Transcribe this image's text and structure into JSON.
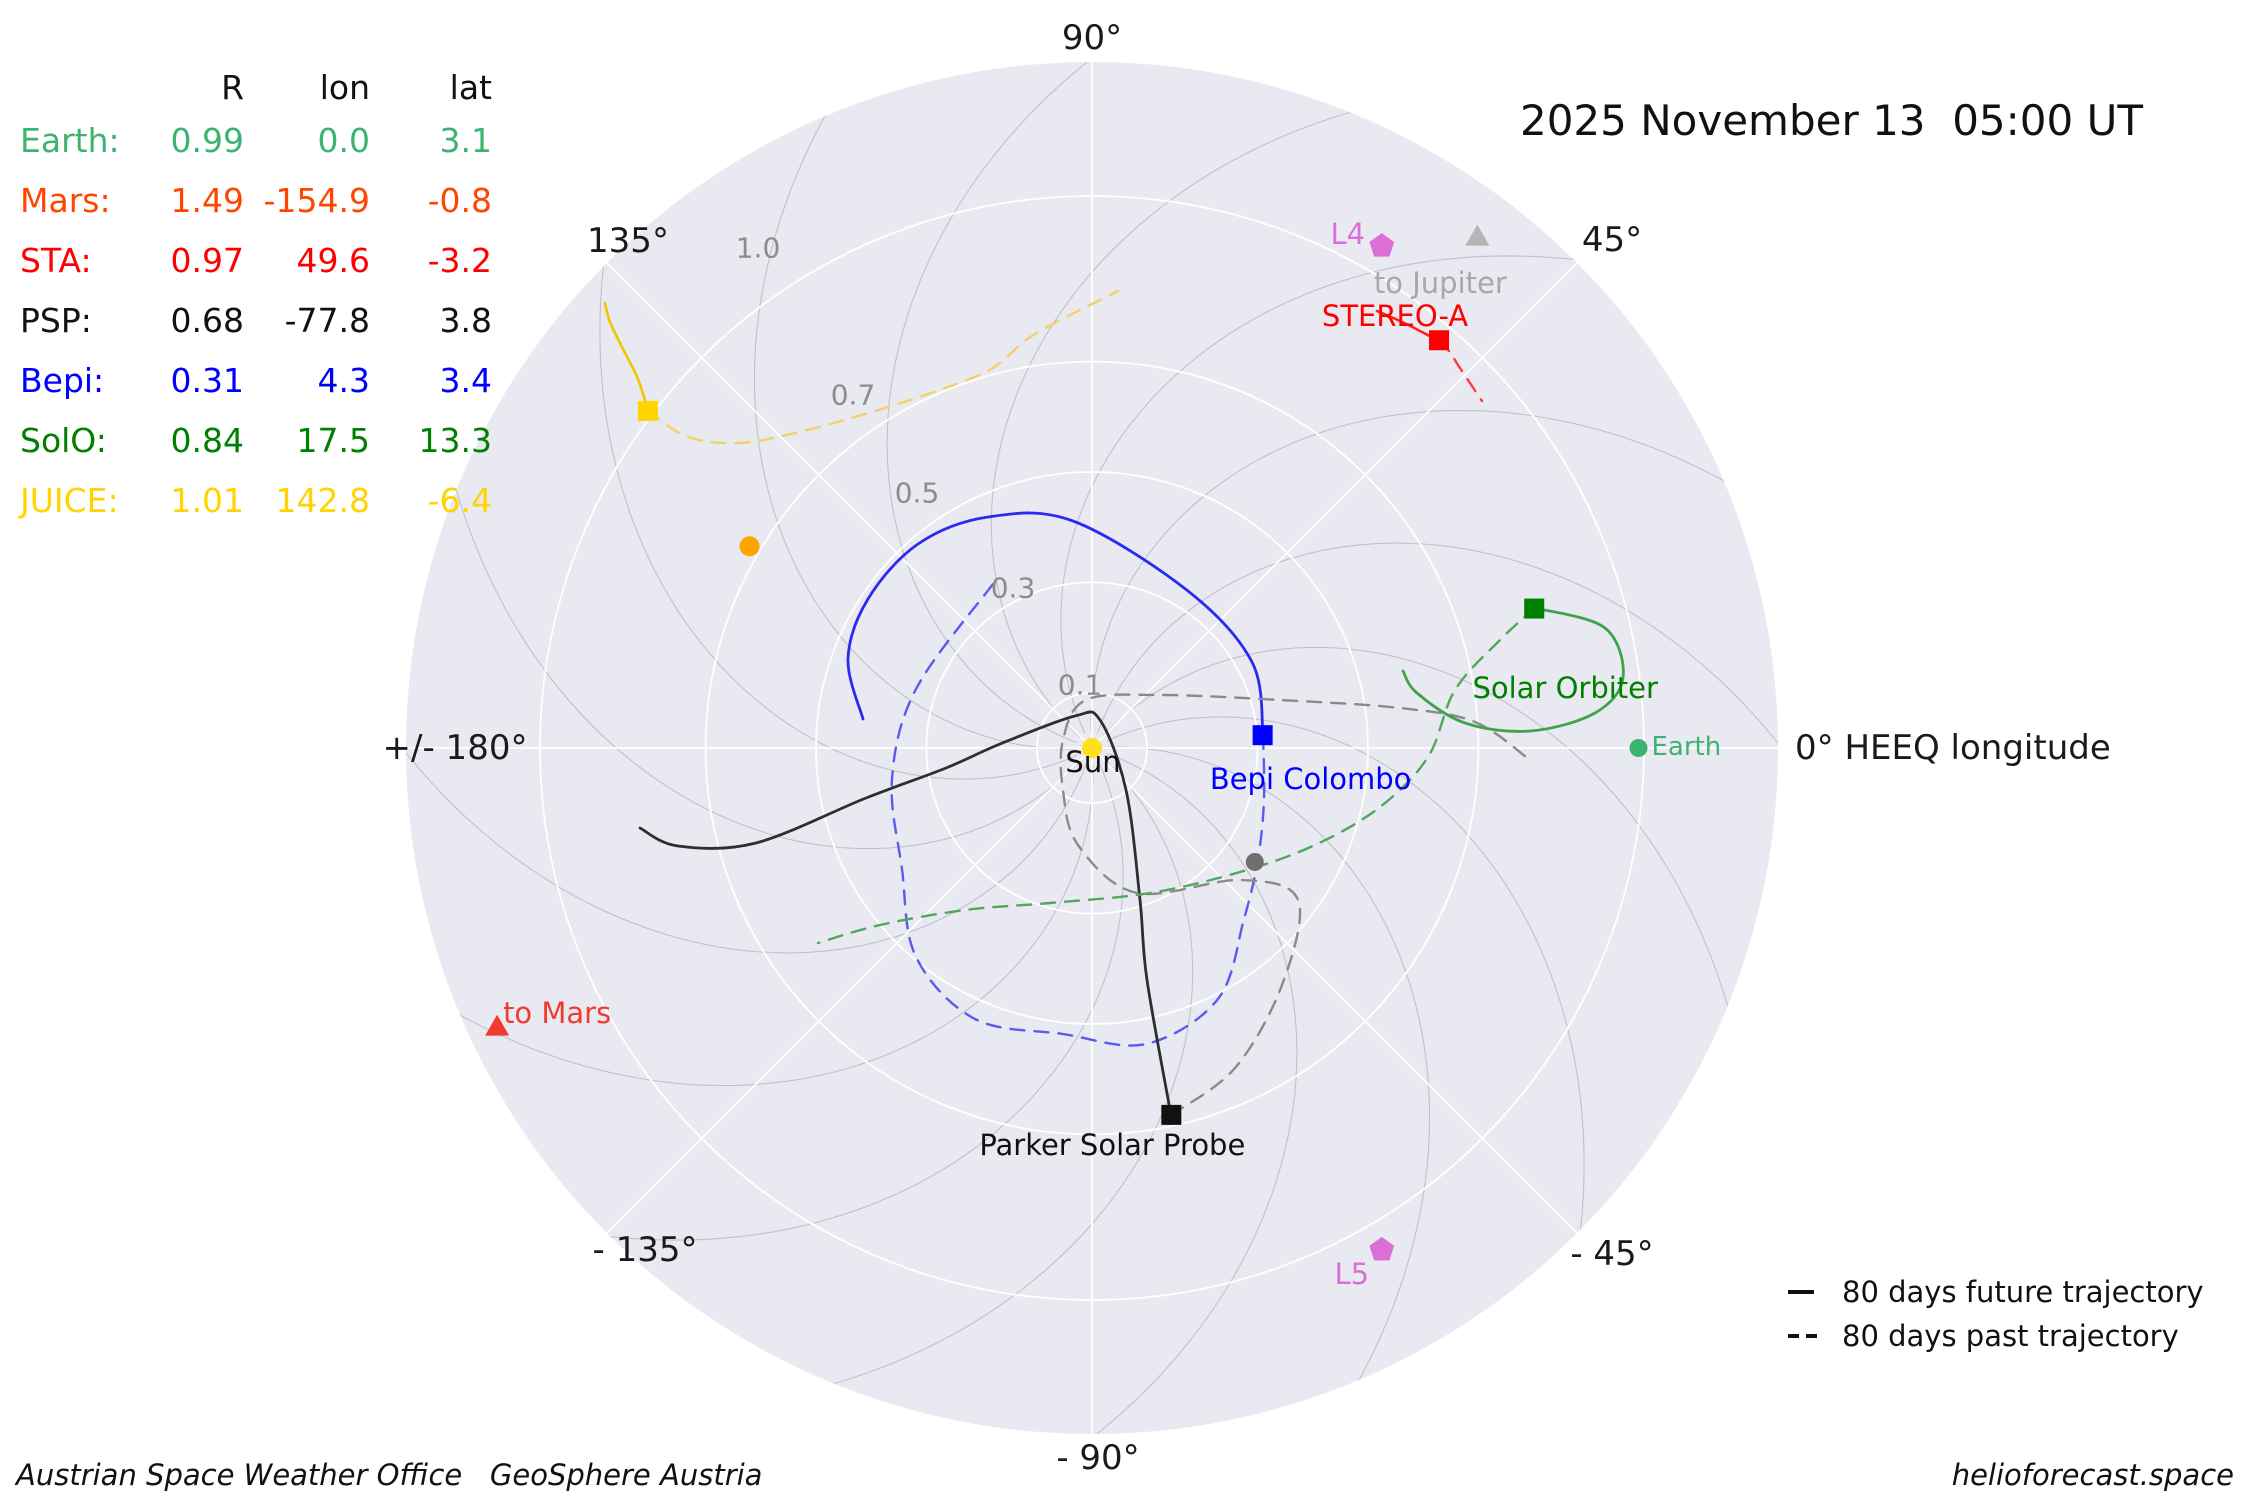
{
  "title": "2025 November 13  05:00 UT",
  "legend": {
    "future_label": "80 days future trajectory",
    "past_label": "80 days past trajectory"
  },
  "footer": {
    "left": "Austrian Space Weather Office   GeoSphere Austria",
    "right": "helioforecast.space"
  },
  "table": {
    "headers": [
      "R",
      "lon",
      "lat"
    ],
    "rows": [
      {
        "name": "Earth:",
        "r": "0.99",
        "lon": "0.0",
        "lat": "3.1",
        "color": "#3cb371"
      },
      {
        "name": "Mars:",
        "r": "1.49",
        "lon": "-154.9",
        "lat": "-0.8",
        "color": "#ff4500"
      },
      {
        "name": "STA:",
        "r": "0.97",
        "lon": "49.6",
        "lat": "-3.2",
        "color": "#ff0000"
      },
      {
        "name": "PSP:",
        "r": "0.68",
        "lon": "-77.8",
        "lat": "3.8",
        "color": "#111111"
      },
      {
        "name": "Bepi:",
        "r": "0.31",
        "lon": "4.3",
        "lat": "3.4",
        "color": "#0000ff"
      },
      {
        "name": "SolO:",
        "r": "0.84",
        "lon": "17.5",
        "lat": "13.3",
        "color": "#008000"
      },
      {
        "name": "JUICE:",
        "r": "1.01",
        "lon": "142.8",
        "lat": "-6.4",
        "color": "#ffd400"
      }
    ]
  },
  "chart_data": {
    "type": "scatter",
    "projection": "polar",
    "title": "2025 November 13  05:00 UT",
    "angular_unit": "HEEQ longitude (deg), Earth fixed at 0",
    "radial_unit": "AU",
    "radial_max": 1.25,
    "grid": true,
    "angle_tick_labels": [
      "90°",
      "45°",
      "0° HEEQ longitude",
      "- 45°",
      "- 90°",
      "- 135°",
      "+/- 180°",
      "135°"
    ],
    "radial_tick_labels": [
      "0.1",
      "0.3",
      "0.5",
      "0.7",
      "1.0"
    ],
    "legend_entries": [
      "80 days future trajectory",
      "80 days past trajectory"
    ],
    "bodies": [
      {
        "name": "sun",
        "label": "Sun",
        "label_color": "#111111",
        "shape": "circle",
        "color": "#ffe01a",
        "r": 0.0,
        "lon": 0.0,
        "lat": null
      },
      {
        "name": "earth",
        "label": "Earth",
        "label_color": "#3cb371",
        "shape": "circle",
        "color": "#3cb371",
        "r": 0.99,
        "lon": 0.0,
        "lat": 3.1
      },
      {
        "name": "mercury",
        "label": "",
        "label_color": "#6f6f6f",
        "shape": "circle",
        "color": "#6f6f6f",
        "r": 0.36,
        "lon": -35.0,
        "lat": null
      },
      {
        "name": "venus",
        "label": "",
        "label_color": "#ffa500",
        "shape": "circle",
        "color": "#ffa500",
        "r": 0.72,
        "lon": 149.5,
        "lat": null
      },
      {
        "name": "stereo-a",
        "label": "STEREO-A",
        "label_color": "#ff0000",
        "shape": "square",
        "color": "#ff0000",
        "r": 0.97,
        "lon": 49.6,
        "lat": -3.2
      },
      {
        "name": "psp",
        "label": "Parker Solar Probe",
        "label_color": "#111111",
        "shape": "square",
        "color": "#111111",
        "r": 0.68,
        "lon": -77.8,
        "lat": 3.8
      },
      {
        "name": "bepi",
        "label": "Bepi Colombo",
        "label_color": "#0000ff",
        "shape": "square",
        "color": "#0000ff",
        "r": 0.31,
        "lon": 4.3,
        "lat": 3.4
      },
      {
        "name": "solo",
        "label": "Solar Orbiter",
        "label_color": "#008000",
        "shape": "square",
        "color": "#008000",
        "r": 0.84,
        "lon": 17.5,
        "lat": 13.3
      },
      {
        "name": "juice",
        "label": "",
        "label_color": "#ffd400",
        "shape": "square",
        "color": "#ffd400",
        "r": 1.01,
        "lon": 142.8,
        "lat": -6.4
      },
      {
        "name": "l4",
        "label": "L4",
        "label_color": "#da70d6",
        "shape": "pentagon",
        "color": "#da70d6",
        "r": 1.05,
        "lon": 60.0,
        "lat": null
      },
      {
        "name": "l5",
        "label": "L5",
        "label_color": "#da70d6",
        "shape": "pentagon",
        "color": "#da70d6",
        "r": 1.05,
        "lon": -60.0,
        "lat": null
      },
      {
        "name": "jupiter-direction",
        "label": "to Jupiter",
        "label_color": "#a8a8a8",
        "shape": "triangle",
        "color": "#b5b5b5",
        "r": 1.16,
        "lon": 53.0,
        "lat": null
      },
      {
        "name": "mars-direction",
        "label": "to Mars",
        "label_color": "#f23b30",
        "shape": "triangle",
        "color": "#f23b30",
        "r": 1.19,
        "lon": -154.9,
        "lat": null
      }
    ]
  }
}
